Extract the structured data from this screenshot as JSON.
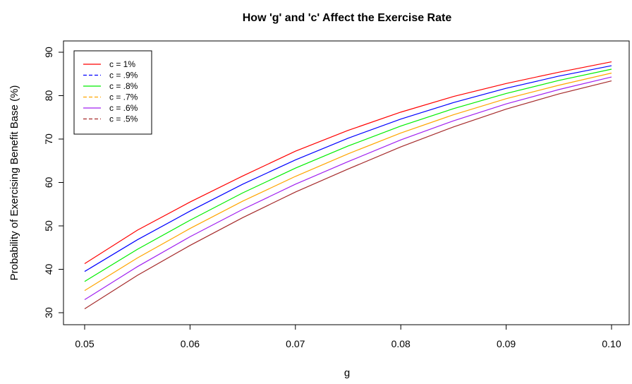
{
  "chart_data": {
    "type": "line",
    "title": "How 'g' and 'c' Affect the Exercise Rate",
    "xlabel": "g",
    "ylabel": "Probability of Exercising Benefit Base (%)",
    "xlim": [
      0.05,
      0.1
    ],
    "ylim": [
      30,
      88
    ],
    "x_ticks": [
      "0.05",
      "0.06",
      "0.07",
      "0.08",
      "0.09",
      "0.10"
    ],
    "y_ticks": [
      "30",
      "40",
      "50",
      "60",
      "70",
      "80",
      "90"
    ],
    "grid": false,
    "legend_position": "top-left",
    "x": [
      0.05,
      0.055,
      0.06,
      0.065,
      0.07,
      0.075,
      0.08,
      0.085,
      0.09,
      0.095,
      0.1
    ],
    "series": [
      {
        "name": "c = 1%",
        "color": "#ff0000",
        "dash": "solid",
        "values": [
          41.3,
          49.0,
          55.5,
          61.5,
          67.2,
          72.0,
          76.2,
          79.8,
          82.8,
          85.4,
          87.8
        ]
      },
      {
        "name": "c = .9%",
        "color": "#0000ff",
        "dash": "dashed",
        "values": [
          39.5,
          46.8,
          53.4,
          59.6,
          65.2,
          70.2,
          74.6,
          78.4,
          81.7,
          84.5,
          86.9
        ]
      },
      {
        "name": "c = .8%",
        "color": "#00ee00",
        "dash": "solid",
        "values": [
          37.2,
          44.6,
          51.3,
          57.6,
          63.3,
          68.4,
          73.0,
          77.0,
          80.5,
          83.5,
          86.1
        ]
      },
      {
        "name": "c = .7%",
        "color": "#ffa500",
        "dash": "dashed",
        "values": [
          35.1,
          42.6,
          49.4,
          55.7,
          61.4,
          66.6,
          71.4,
          75.6,
          79.3,
          82.4,
          85.2
        ]
      },
      {
        "name": "c = .6%",
        "color": "#a020f0",
        "dash": "solid",
        "values": [
          33.0,
          40.6,
          47.5,
          53.8,
          59.6,
          64.8,
          69.8,
          74.2,
          78.1,
          81.4,
          84.3
        ]
      },
      {
        "name": "c = .5%",
        "color": "#a52a2a",
        "dash": "dashed",
        "values": [
          30.9,
          38.6,
          45.5,
          51.9,
          57.8,
          63.1,
          68.2,
          72.8,
          76.9,
          80.4,
          83.4
        ]
      }
    ]
  }
}
